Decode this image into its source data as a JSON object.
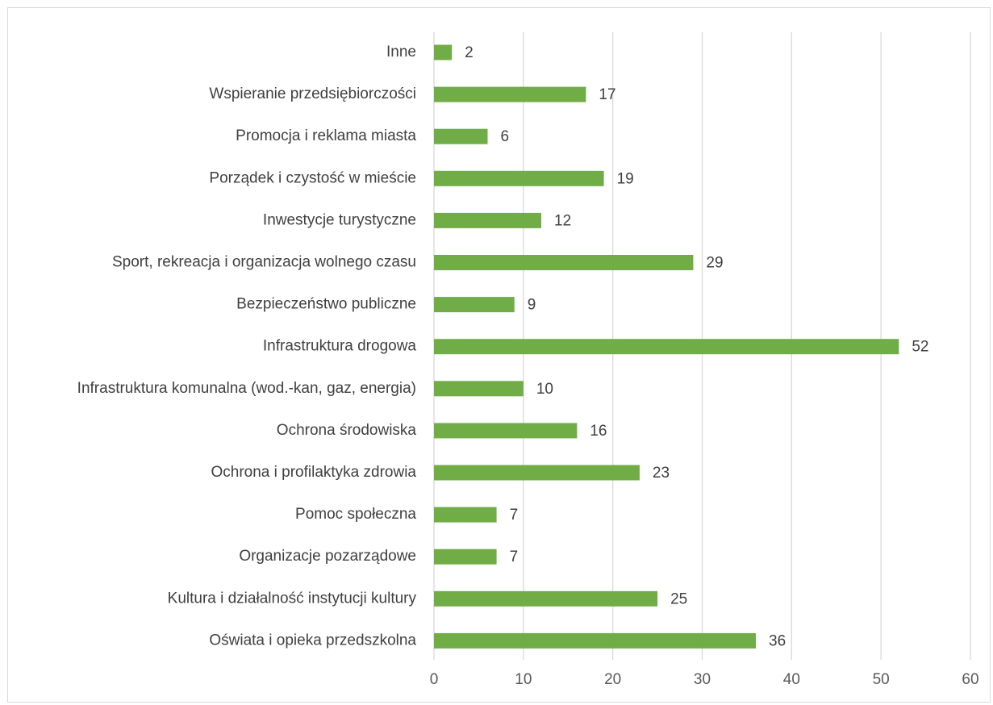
{
  "chart_data": {
    "type": "bar",
    "orientation": "horizontal",
    "title": "",
    "xlabel": "",
    "ylabel": "",
    "categories": [
      "Inne",
      "Wspieranie przedsiębiorczości",
      "Promocja i reklama miasta",
      "Porządek i czystość w mieście",
      "Inwestycje turystyczne",
      "Sport, rekreacja i organizacja wolnego czasu",
      "Bezpieczeństwo publiczne",
      "Infrastruktura drogowa",
      "Infrastruktura komunalna (wod.-kan, gaz, energia)",
      "Ochrona środowiska",
      "Ochrona i profilaktyka zdrowia",
      "Pomoc społeczna",
      "Organizacje pozarządowe",
      "Kultura i działalność instytucji kultury",
      "Oświata i opieka przedszkolna"
    ],
    "values": [
      2,
      17,
      6,
      19,
      12,
      29,
      9,
      52,
      10,
      16,
      23,
      7,
      7,
      25,
      36
    ],
    "data_labels": [
      "2",
      "17",
      "6",
      "19",
      "12",
      "29",
      "9",
      "52",
      "10",
      "16",
      "23",
      "7",
      "7",
      "25",
      "36"
    ],
    "xlim": [
      0,
      60
    ],
    "xticks": [
      0,
      10,
      20,
      30,
      40,
      50,
      60
    ],
    "xtick_labels": [
      "0",
      "10",
      "20",
      "30",
      "40",
      "50",
      "60"
    ],
    "grid": "vertical",
    "legend": "none",
    "bar_color": "#70ad47",
    "grid_color": "#d9d9d9"
  }
}
